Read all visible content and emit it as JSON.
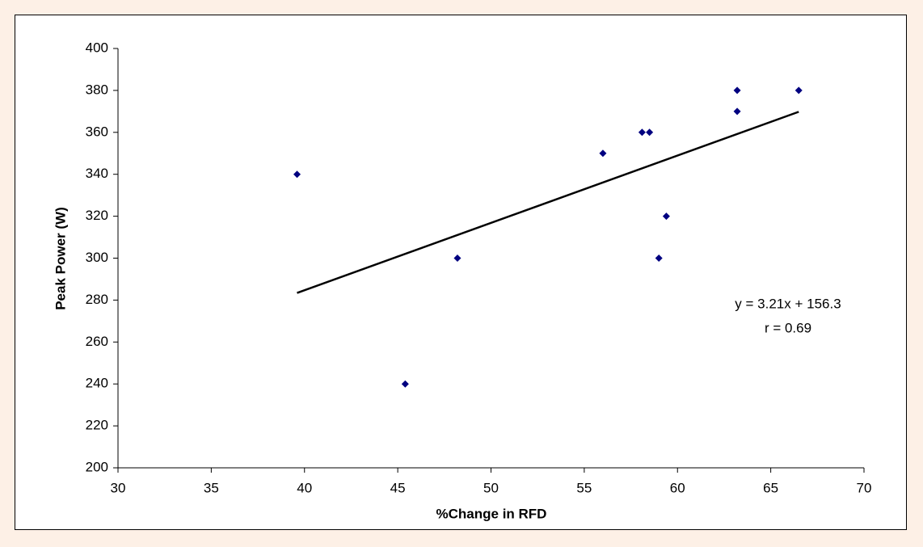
{
  "chart_data": {
    "type": "scatter",
    "x_label": "%Change in RFD",
    "y_label": "Peak Power (W)",
    "x": [
      39.6,
      45.4,
      48.2,
      56.0,
      58.1,
      58.5,
      59.0,
      59.4,
      63.2,
      63.2,
      66.5
    ],
    "values": [
      340,
      240,
      300,
      350,
      360,
      360,
      300,
      320,
      380,
      370,
      380
    ],
    "color": "#000080",
    "trendline": {
      "x": [
        39.6,
        66.5
      ],
      "values": [
        283.4,
        369.8
      ],
      "color": "#000000"
    },
    "annotations": [
      "y = 3.21x + 156.3",
      "r = 0.69"
    ],
    "xlim": [
      30,
      70
    ],
    "xticks": [
      30,
      35,
      40,
      45,
      50,
      55,
      60,
      65,
      70
    ],
    "ylim": [
      200,
      400
    ],
    "yticks": [
      200,
      220,
      240,
      260,
      280,
      300,
      320,
      340,
      360,
      380,
      400
    ],
    "grid": false
  }
}
